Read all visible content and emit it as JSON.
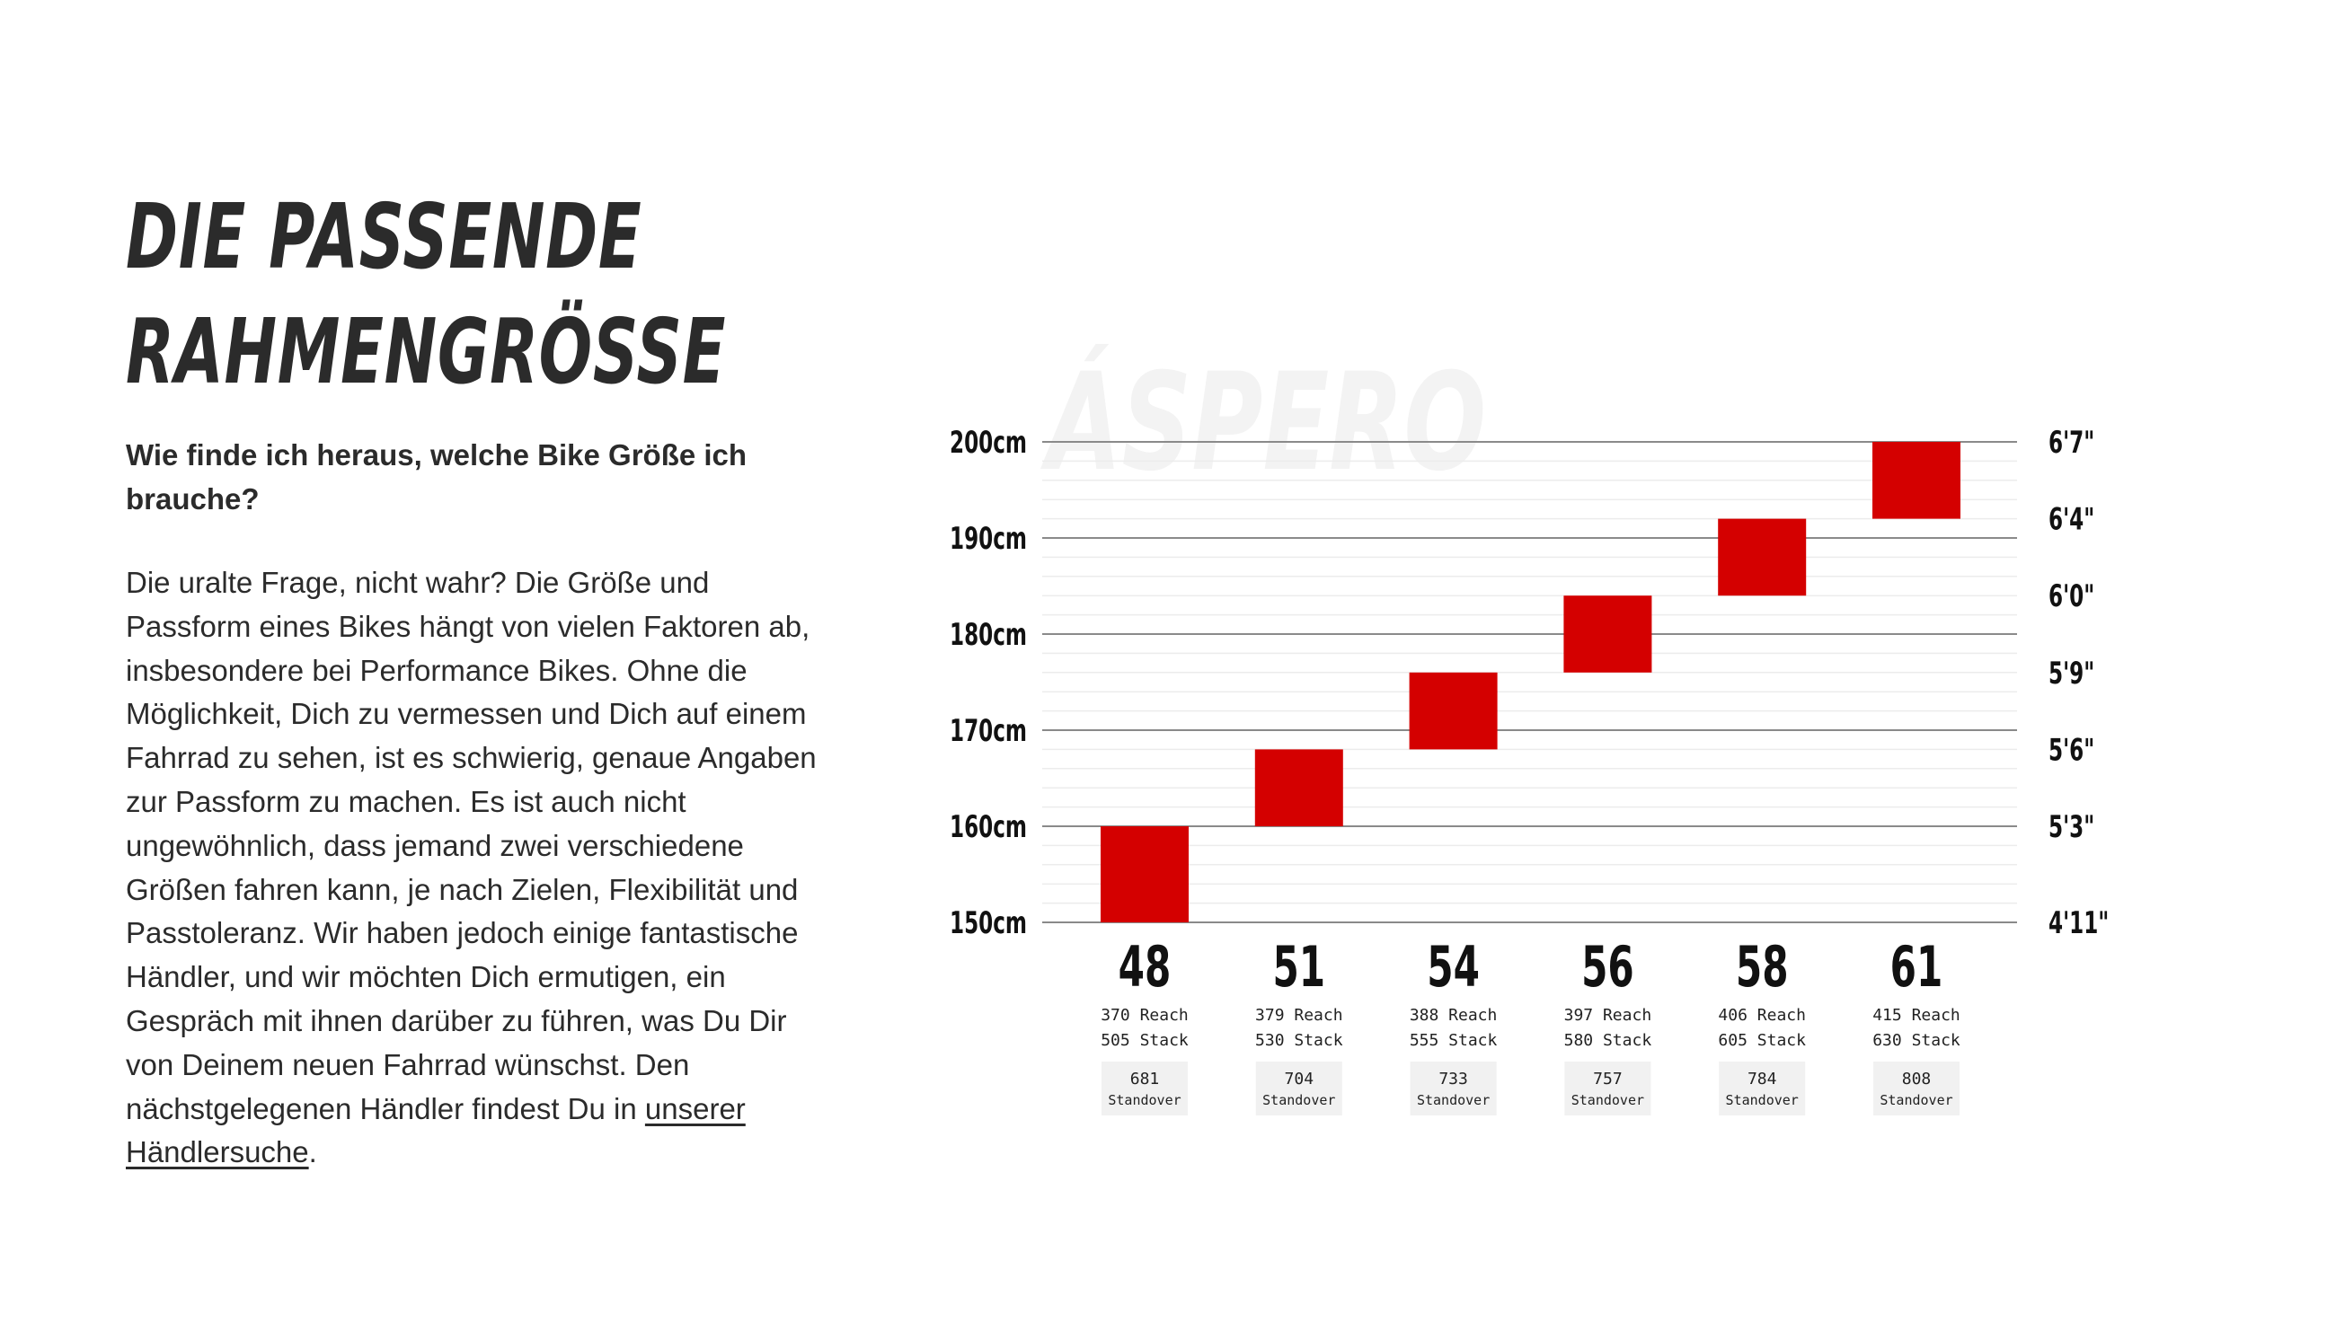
{
  "intro": {
    "title_line1": "DIE PASSENDE",
    "title_line2": "RAHMENGRÖSSE",
    "question": "Wie finde ich heraus, welche Bike Größe ich brauche?",
    "body": "Die uralte Frage, nicht wahr? Die Größe und Passform eines Bikes hängt von vielen Faktoren ab, insbesondere bei Performance Bikes. Ohne die Möglichkeit, Dich zu vermessen und Dich auf einem Fahrrad zu sehen, ist es schwierig, genaue Angaben zur Passform zu machen. Es ist auch nicht ungewöhnlich, dass jemand zwei verschiedene Größen fahren kann, je nach Zielen, Flexibilität und Passtoleranz. Wir haben jedoch einige fantastische Händler, und wir möchten Dich ermutigen, ein Gespräch mit ihnen darüber zu führen, was Du Dir von Deinem neuen Fahrrad wünschst. Den nächstgelegenen Händler findest Du in",
    "link_text": "unserer Händlersuche",
    "after_link": "."
  },
  "chart_data": {
    "type": "bar",
    "watermark": "ÁSPERO",
    "ylim": [
      150,
      200
    ],
    "y_ticks_cm": [
      200,
      190,
      180,
      170,
      160,
      150
    ],
    "y_tick_labels_left": [
      "200cm",
      "190cm",
      "180cm",
      "170cm",
      "160cm",
      "150cm"
    ],
    "y_tick_labels_right": [
      "6'7\"",
      "6'4\"",
      "6'0\"",
      "5'9\"",
      "5'6\"",
      "5'3\"",
      "4'11\""
    ],
    "y_ticks_right_cm": [
      200,
      192,
      184,
      176,
      168,
      160,
      150
    ],
    "categories": [
      "48",
      "51",
      "54",
      "56",
      "58",
      "61"
    ],
    "rider_height_ranges_cm": [
      [
        150,
        160
      ],
      [
        160,
        168
      ],
      [
        168,
        176
      ],
      [
        176,
        184
      ],
      [
        184,
        192
      ],
      [
        192,
        200
      ]
    ],
    "reach": [
      "370 Reach",
      "379 Reach",
      "388 Reach",
      "397 Reach",
      "406 Reach",
      "415 Reach"
    ],
    "stack": [
      "505 Stack",
      "530 Stack",
      "555 Stack",
      "580 Stack",
      "605 Stack",
      "630 Stack"
    ],
    "standover_values": [
      "681",
      "704",
      "733",
      "757",
      "784",
      "808"
    ],
    "standover_label": "Standover",
    "bar_color": "#d40000",
    "grid": true
  }
}
